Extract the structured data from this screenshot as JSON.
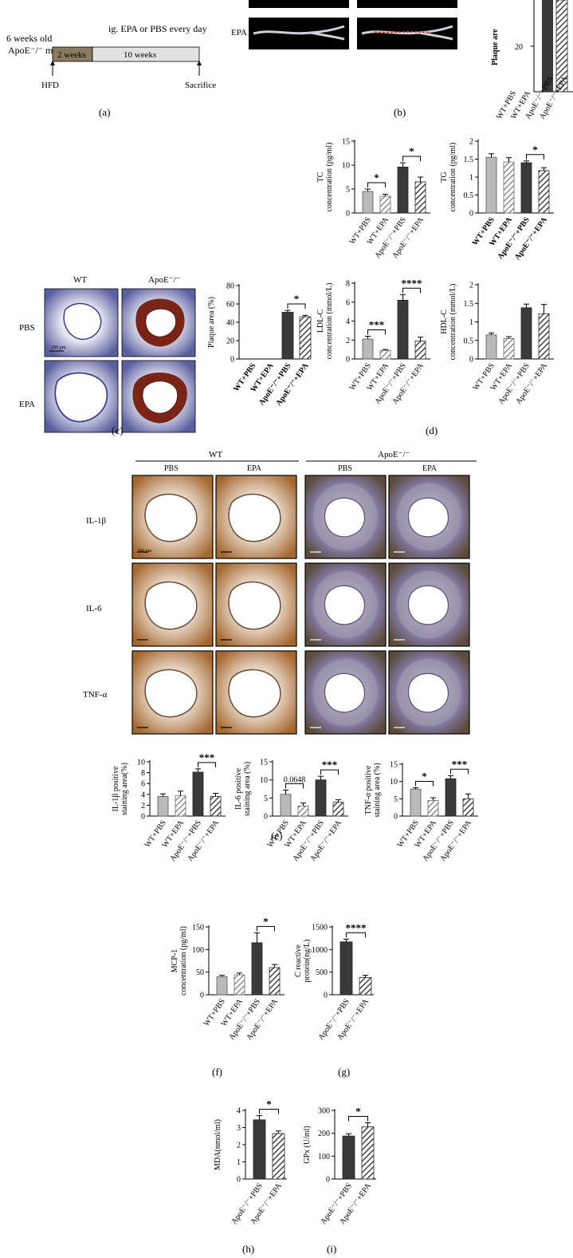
{
  "panel_labels": [
    "(a)",
    "(b)",
    "(c)",
    "(d)",
    "(e)",
    "(f)",
    "(g)",
    "(h)",
    "(i)"
  ],
  "panel_a": {
    "animals": "6 weeks old",
    "strain": "ApoE⁻/⁻ male",
    "phase1": "2 weeks",
    "phase2_title": "ig. EPA or PBS every day",
    "phase2": "10 weeks",
    "start": "HFD",
    "end": "Sacrifice"
  },
  "panel_b": {
    "row_label": "EPA",
    "ylabel": "Plaque are",
    "tick": "20"
  },
  "panel_c": {
    "col_wt": "WT",
    "col_apoe": "ApoE⁻/⁻",
    "row_pbs": "PBS",
    "row_epa": "EPA",
    "scale": "200 μm"
  },
  "panel_e": {
    "group_wt": "WT",
    "group_apoe": "ApoE⁻/⁻",
    "col_pbs": "PBS",
    "col_epa": "EPA",
    "row_labels": [
      "IL-1β",
      "IL-6",
      "TNF-α"
    ],
    "scale": "200 μm"
  },
  "colors": {
    "wt_pbs": "#b9b9b9",
    "apoe_pbs": "#3a3a3a",
    "hatch_wt": "#6a6a6a",
    "hatch_apoe": "#2a2a2a",
    "phase1_fill": "#8a7a5f",
    "phase2_fill": "#e2e2e2",
    "he_stain": "#3b3f8f",
    "plaque": "#7a2418",
    "ihc_brown": "#9b5c2a"
  },
  "chart_data": [
    {
      "id": "c",
      "type": "bar",
      "ylabel": "Plaque area (%)",
      "ylim": [
        0,
        80
      ],
      "yticks": [
        0,
        20,
        40,
        60,
        80
      ],
      "bold_cat": true,
      "categories": [
        "WT+PBS",
        "WT+EPA",
        "ApoE⁻/⁻+PBS",
        "ApoE⁻/⁻+EPA"
      ],
      "values": [
        0,
        0,
        51,
        46
      ],
      "errors": [
        0,
        0,
        2,
        1.5
      ],
      "styles": [
        "gray",
        "gray-hatch",
        "dark",
        "dark-hatch"
      ],
      "sig": [
        {
          "a": 2,
          "b": 3,
          "label": "*"
        }
      ]
    },
    {
      "id": "d1",
      "type": "bar",
      "ylabel": "TC",
      "ylabel2": "concentration (pg/ml)",
      "ylim": [
        0,
        15
      ],
      "yticks": [
        0,
        5,
        10,
        15
      ],
      "categories": [
        "WT+PBS",
        "WT+EPA",
        "ApoE⁻/⁻+PBS",
        "ApoE⁻/⁻+EPA"
      ],
      "values": [
        4.5,
        3.5,
        9.6,
        6.5
      ],
      "errors": [
        0.5,
        0.4,
        0.9,
        1.0
      ],
      "styles": [
        "gray",
        "gray-hatch",
        "dark",
        "dark-hatch"
      ],
      "sig": [
        {
          "a": 0,
          "b": 1,
          "label": "*"
        },
        {
          "a": 2,
          "b": 3,
          "label": "*"
        }
      ]
    },
    {
      "id": "d2",
      "type": "bar",
      "ylabel": "TG",
      "ylabel2": "concentration (pg/ml)",
      "ylim": [
        0,
        2.0
      ],
      "yticks": [
        0,
        0.5,
        1.0,
        1.5,
        2.0
      ],
      "bold_cat": true,
      "categories": [
        "WT+PBS",
        "WT+EPA",
        "ApoE⁻/⁻+PBS",
        "ApoE⁻/⁻+EPA"
      ],
      "values": [
        1.55,
        1.42,
        1.4,
        1.18
      ],
      "errors": [
        0.1,
        0.12,
        0.05,
        0.08
      ],
      "styles": [
        "gray",
        "gray-hatch",
        "dark",
        "dark-hatch"
      ],
      "sig": [
        {
          "a": 2,
          "b": 3,
          "label": "*"
        }
      ]
    },
    {
      "id": "d3",
      "type": "bar",
      "ylabel": "LDL-C",
      "ylabel2": "concentration (mmol/L)",
      "ylim": [
        0,
        8
      ],
      "yticks": [
        0,
        2,
        4,
        6,
        8
      ],
      "categories": [
        "WT+PBS",
        "WT+EPA",
        "ApoE⁻/⁻+PBS",
        "ApoE⁻/⁻+EPA"
      ],
      "values": [
        2.1,
        0.9,
        6.2,
        1.9
      ],
      "errors": [
        0.3,
        0.1,
        0.6,
        0.4
      ],
      "styles": [
        "gray",
        "gray-hatch",
        "dark",
        "dark-hatch"
      ],
      "sig": [
        {
          "a": 0,
          "b": 1,
          "label": "***"
        },
        {
          "a": 2,
          "b": 3,
          "label": "****"
        }
      ]
    },
    {
      "id": "d4",
      "type": "bar",
      "ylabel": "HDL-C",
      "ylabel2": "concentration (mmol/L)",
      "ylim": [
        0,
        2.0
      ],
      "yticks": [
        0,
        0.5,
        1.0,
        1.5,
        2.0
      ],
      "categories": [
        "WT+PBS",
        "WT+EPA",
        "ApoE⁻/⁻+PBS",
        "ApoE⁻/⁻+EPA"
      ],
      "values": [
        0.65,
        0.55,
        1.38,
        1.22
      ],
      "errors": [
        0.05,
        0.05,
        0.1,
        0.25
      ],
      "styles": [
        "gray",
        "gray-hatch",
        "dark",
        "dark-hatch"
      ],
      "sig": []
    },
    {
      "id": "e1",
      "type": "bar",
      "ylabel": "IL-1β positive",
      "ylabel2": "staining area(%)",
      "ylim": [
        0,
        10
      ],
      "yticks": [
        0,
        2,
        4,
        6,
        8,
        10
      ],
      "categories": [
        "WT+PBS",
        "WT+EPA",
        "ApoE⁻/⁻+PBS",
        "ApoE⁻/⁻+EPA"
      ],
      "values": [
        3.6,
        3.8,
        8.1,
        3.6
      ],
      "errors": [
        0.5,
        0.8,
        0.6,
        0.6
      ],
      "styles": [
        "gray",
        "gray-hatch",
        "dark",
        "dark-hatch"
      ],
      "sig": [
        {
          "a": 2,
          "b": 3,
          "label": "***"
        }
      ]
    },
    {
      "id": "e2",
      "type": "bar",
      "ylabel": "IL-6 positive",
      "ylabel2": "staining area (%)",
      "ylim": [
        0,
        15
      ],
      "yticks": [
        0,
        5,
        10,
        15
      ],
      "categories": [
        "WT+PBS",
        "WT+EPA",
        "ApoE⁻/⁻+PBS",
        "ApoE⁻/⁻+EPA"
      ],
      "values": [
        6.0,
        2.8,
        10.0,
        3.8
      ],
      "errors": [
        1.2,
        0.8,
        1.0,
        0.7
      ],
      "styles": [
        "gray",
        "gray-hatch",
        "dark",
        "dark-hatch"
      ],
      "sig": [
        {
          "a": 0,
          "b": 1,
          "label": "0.0648"
        },
        {
          "a": 2,
          "b": 3,
          "label": "***"
        }
      ]
    },
    {
      "id": "e3",
      "type": "bar",
      "ylabel": "TNF-α positive",
      "ylabel2": "staining area (%)",
      "ylim": [
        0,
        15
      ],
      "yticks": [
        0,
        5,
        10,
        15
      ],
      "categories": [
        "WT+PBS",
        "WT+EPA",
        "ApoE⁻/⁻+PBS",
        "ApoE⁻/⁻+EPA"
      ],
      "values": [
        7.8,
        4.5,
        10.8,
        5.0
      ],
      "errors": [
        0.4,
        0.8,
        0.9,
        1.4
      ],
      "styles": [
        "gray",
        "gray-hatch",
        "dark",
        "dark-hatch"
      ],
      "sig": [
        {
          "a": 0,
          "b": 1,
          "label": "*"
        },
        {
          "a": 2,
          "b": 3,
          "label": "***"
        }
      ]
    },
    {
      "id": "f",
      "type": "bar",
      "ylabel": "MCP-1",
      "ylabel2": "concentration (pg/ml)",
      "ylim": [
        0,
        150
      ],
      "yticks": [
        0,
        50,
        100,
        150
      ],
      "categories": [
        "WT+PBS",
        "WT+EPA",
        "ApoE⁻/⁻+PBS",
        "ApoE⁻/⁻+EPA"
      ],
      "values": [
        40,
        44,
        115,
        60
      ],
      "errors": [
        3,
        4,
        22,
        7
      ],
      "styles": [
        "gray",
        "gray-hatch",
        "dark",
        "dark-hatch"
      ],
      "sig": [
        {
          "a": 2,
          "b": 3,
          "label": "*"
        }
      ]
    },
    {
      "id": "g",
      "type": "bar",
      "ylabel": "C reactive",
      "ylabel2": "protein(ng/L)",
      "ylim": [
        0,
        1500
      ],
      "yticks": [
        0,
        500,
        1000,
        1500
      ],
      "categories": [
        "ApoE⁻/⁻+PBS",
        "ApoE⁻/⁻+EPA"
      ],
      "values": [
        1170,
        380
      ],
      "errors": [
        60,
        50
      ],
      "styles": [
        "dark",
        "dark-hatch"
      ],
      "sig": [
        {
          "a": 0,
          "b": 1,
          "label": "****"
        }
      ]
    },
    {
      "id": "h",
      "type": "bar",
      "ylabel": "MDA(nmol/ml)",
      "ylim": [
        0,
        4
      ],
      "yticks": [
        0,
        1,
        2,
        3,
        4
      ],
      "categories": [
        "ApoE⁻/⁻+PBS",
        "ApoE⁻/⁻+EPA"
      ],
      "values": [
        3.45,
        2.65
      ],
      "errors": [
        0.25,
        0.15
      ],
      "styles": [
        "dark",
        "dark-hatch"
      ],
      "sig": [
        {
          "a": 0,
          "b": 1,
          "label": "*"
        }
      ]
    },
    {
      "id": "i",
      "type": "bar",
      "ylabel": "GPx (U/ml)",
      "ylim": [
        0,
        300
      ],
      "yticks": [
        0,
        100,
        200,
        300
      ],
      "categories": [
        "ApoE⁻/⁻+PBS",
        "ApoE⁻/⁻+EPA"
      ],
      "values": [
        188,
        228
      ],
      "errors": [
        10,
        18
      ],
      "styles": [
        "dark",
        "dark-hatch"
      ],
      "sig": [
        {
          "a": 0,
          "b": 1,
          "label": "*"
        }
      ]
    }
  ]
}
